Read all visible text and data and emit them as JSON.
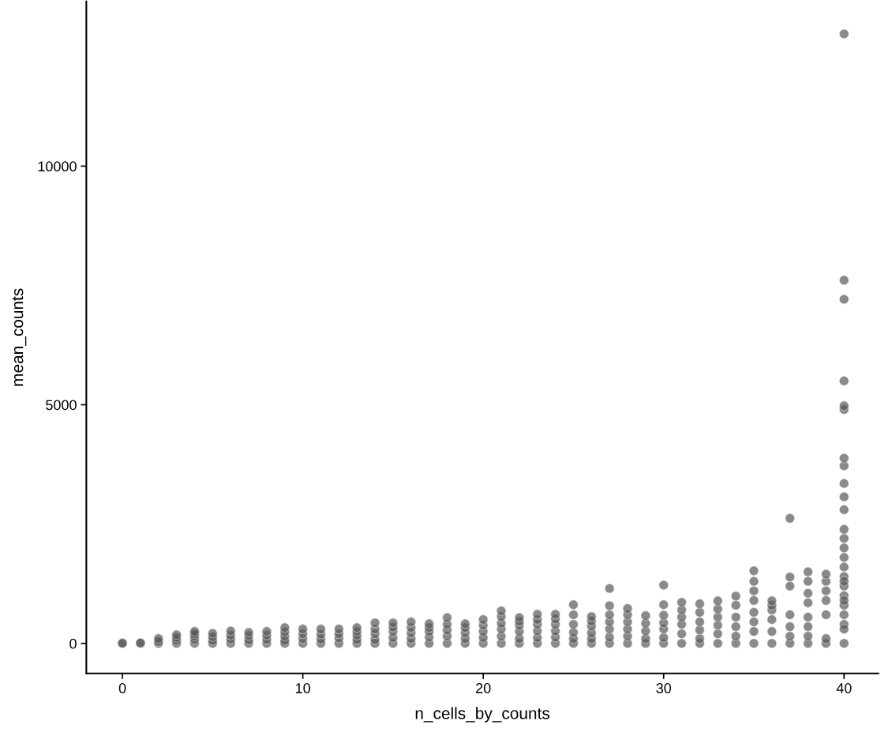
{
  "chart_data": {
    "type": "scatter",
    "xlabel": "n_cells_by_counts",
    "ylabel": "mean_counts",
    "xlim": [
      -2,
      41.9
    ],
    "ylim": [
      -630,
      13450
    ],
    "xticks": [
      0,
      10,
      20,
      30,
      40
    ],
    "yticks": [
      0,
      5000,
      10000
    ],
    "grid": false,
    "marker": "circle",
    "series": [
      {
        "color": "#595959",
        "x": [
          0,
          0,
          1,
          1,
          2,
          2,
          2,
          3,
          3,
          3,
          3,
          4,
          4,
          4,
          4,
          4,
          5,
          5,
          5,
          5,
          6,
          6,
          6,
          6,
          7,
          7,
          7,
          7,
          8,
          8,
          8,
          8,
          9,
          9,
          9,
          9,
          9,
          10,
          10,
          10,
          10,
          11,
          11,
          11,
          11,
          12,
          12,
          12,
          12,
          13,
          13,
          13,
          13,
          13,
          14,
          14,
          14,
          14,
          14,
          15,
          15,
          15,
          15,
          15,
          16,
          16,
          16,
          16,
          16,
          17,
          17,
          17,
          17,
          17,
          18,
          18,
          18,
          18,
          18,
          19,
          19,
          19,
          19,
          19,
          20,
          20,
          20,
          20,
          20,
          21,
          21,
          21,
          21,
          21,
          21,
          22,
          22,
          22,
          22,
          22,
          22,
          23,
          23,
          23,
          23,
          23,
          23,
          24,
          24,
          24,
          24,
          24,
          24,
          25,
          25,
          25,
          25,
          25,
          25,
          26,
          26,
          26,
          26,
          26,
          26,
          27,
          27,
          27,
          27,
          27,
          27,
          27,
          28,
          28,
          28,
          28,
          28,
          28,
          29,
          29,
          29,
          29,
          29,
          30,
          30,
          30,
          30,
          30,
          30,
          30,
          31,
          31,
          31,
          31,
          31,
          31,
          32,
          32,
          32,
          32,
          32,
          32,
          33,
          33,
          33,
          33,
          33,
          33,
          34,
          34,
          34,
          34,
          34,
          34,
          35,
          35,
          35,
          35,
          35,
          35,
          35,
          35,
          36,
          36,
          36,
          36,
          36,
          36,
          37,
          37,
          37,
          37,
          37,
          37,
          37,
          38,
          38,
          38,
          38,
          38,
          38,
          38,
          38,
          39,
          39,
          39,
          39,
          39,
          39,
          39,
          40,
          40,
          40,
          40,
          40,
          40,
          40,
          40,
          40,
          40,
          40,
          40,
          40,
          40,
          40,
          40,
          40,
          40,
          40,
          40,
          40,
          40,
          40,
          40,
          40,
          40
        ],
        "values": [
          0,
          5,
          0,
          10,
          0,
          40,
          100,
          0,
          60,
          120,
          180,
          0,
          80,
          150,
          200,
          250,
          0,
          60,
          140,
          210,
          0,
          90,
          170,
          260,
          0,
          70,
          160,
          230,
          0,
          80,
          170,
          250,
          0,
          60,
          150,
          240,
          330,
          0,
          100,
          200,
          300,
          0,
          90,
          190,
          300,
          0,
          110,
          200,
          300,
          0,
          80,
          170,
          250,
          330,
          0,
          80,
          200,
          300,
          430,
          0,
          120,
          250,
          340,
          430,
          0,
          100,
          220,
          330,
          450,
          0,
          130,
          250,
          330,
          410,
          0,
          150,
          280,
          400,
          540,
          0,
          100,
          220,
          330,
          410,
          0,
          120,
          250,
          380,
          500,
          0,
          150,
          300,
          420,
          560,
          680,
          0,
          100,
          250,
          380,
          460,
          540,
          0,
          120,
          260,
          400,
          500,
          610,
          0,
          130,
          260,
          400,
          510,
          610,
          0,
          100,
          230,
          400,
          600,
          810,
          0,
          100,
          220,
          360,
          470,
          560,
          0,
          130,
          300,
          450,
          600,
          790,
          1150,
          0,
          150,
          300,
          450,
          600,
          730,
          0,
          100,
          260,
          420,
          580,
          0,
          120,
          300,
          430,
          590,
          810,
          1220,
          0,
          200,
          400,
          550,
          700,
          860,
          0,
          100,
          280,
          450,
          650,
          830,
          0,
          200,
          380,
          550,
          720,
          890,
          0,
          150,
          350,
          550,
          800,
          990,
          0,
          250,
          450,
          650,
          900,
          1100,
          1300,
          1520,
          0,
          250,
          500,
          700,
          800,
          890,
          0,
          150,
          350,
          600,
          1200,
          1390,
          2620,
          0,
          150,
          350,
          550,
          850,
          1050,
          1300,
          1500,
          0,
          100,
          600,
          900,
          1100,
          1300,
          1450,
          0,
          400,
          600,
          800,
          1000,
          1200,
          1400,
          1600,
          1800,
          2000,
          2200,
          2390,
          2800,
          3070,
          3350,
          3720,
          3880,
          4900,
          4980,
          5500,
          7210,
          7610,
          12770,
          300,
          900,
          1300
        ]
      }
    ]
  }
}
